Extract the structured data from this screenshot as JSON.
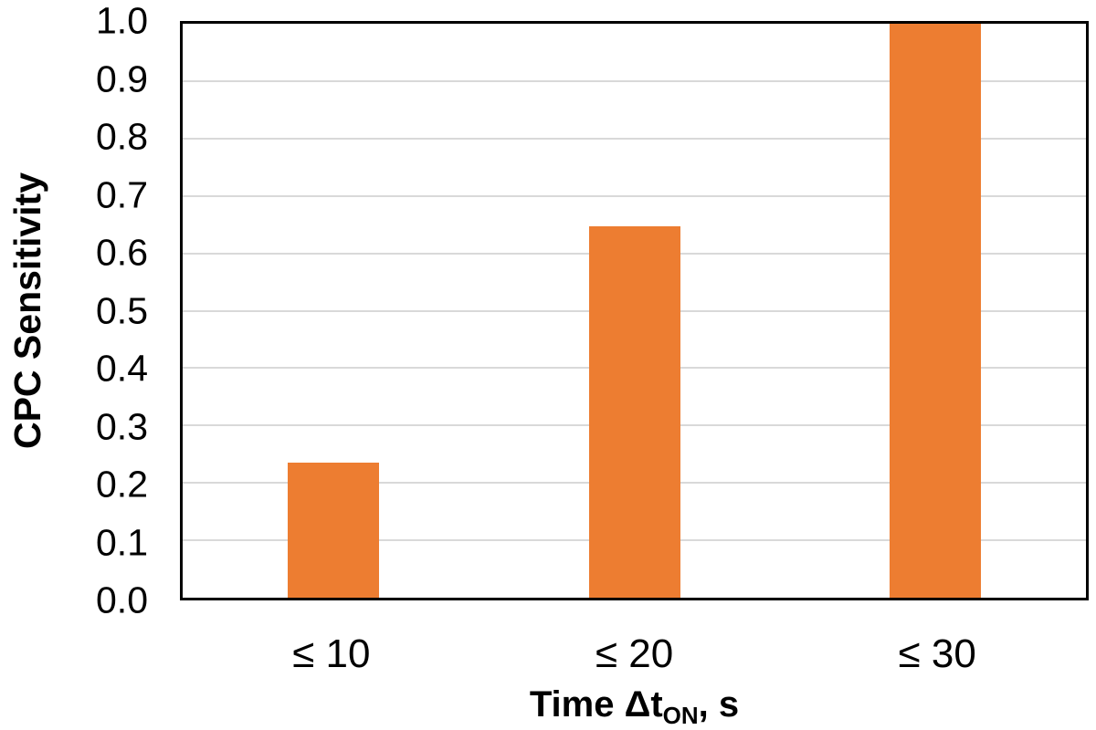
{
  "chart_data": {
    "type": "bar",
    "title": "",
    "categories": [
      "≤ 10",
      "≤ 20",
      "≤ 30"
    ],
    "values": [
      0.235,
      0.647,
      1.0
    ],
    "xlabel": "Time ΔtON, s",
    "xlabel_parts": {
      "prefix": "Time Δt",
      "subscript": "ON",
      "suffix": ", s"
    },
    "ylabel": "CPC Sensitivity",
    "ylim": [
      0.0,
      1.0
    ],
    "ytick_step": 0.1,
    "ytick_labels": [
      "0.0",
      "0.1",
      "0.2",
      "0.3",
      "0.4",
      "0.5",
      "0.6",
      "0.7",
      "0.8",
      "0.9",
      "1.0"
    ],
    "grid": true,
    "legend": false,
    "bar_color": "#ED7D31",
    "gridline_color": "#D9D9D9",
    "axis_color": "#000000",
    "text_color": "#000000"
  }
}
